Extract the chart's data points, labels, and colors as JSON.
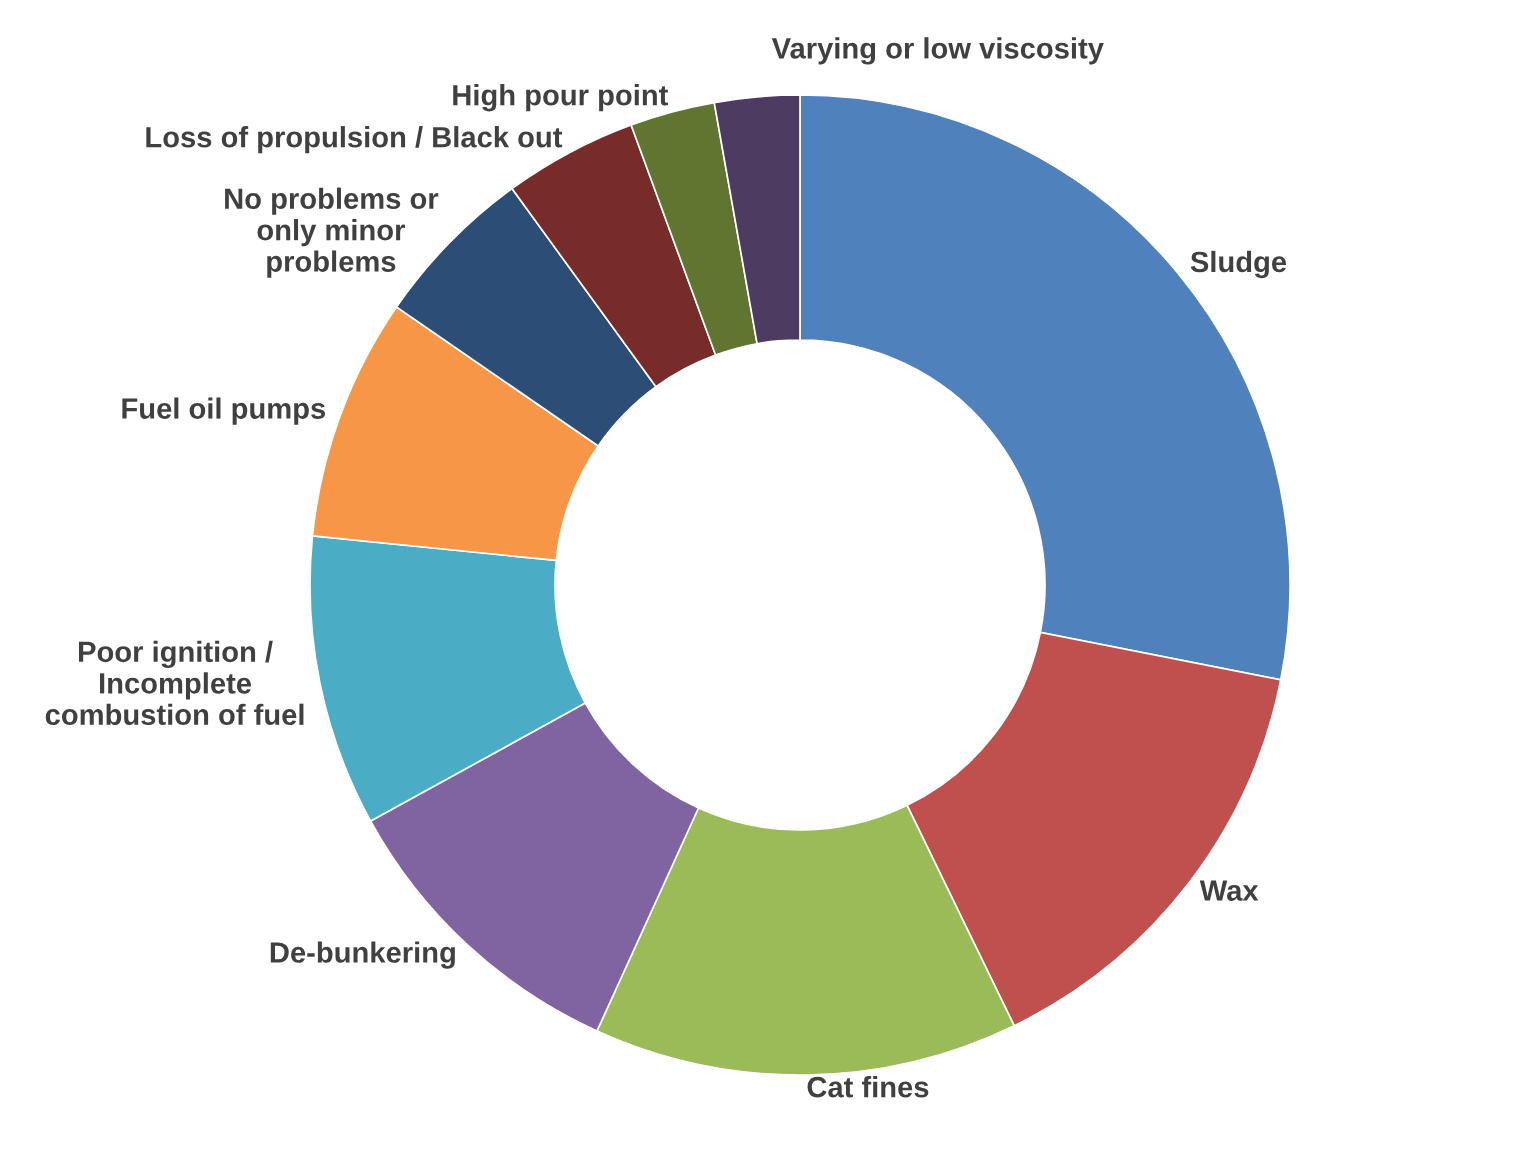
{
  "chart_data": {
    "type": "donut",
    "categories": [
      "Sludge",
      "Wax",
      "Cat fines",
      "De-bunkering",
      "Poor ignition /\nIncomplete\ncombustion of fuel",
      "Fuel oil pumps",
      "No problems or\nonly minor\nproblems",
      "Loss of propulsion / Black out",
      "High pour point",
      "Varying or low viscosity"
    ],
    "values": [
      28.1,
      14.7,
      14.0,
      10.2,
      9.6,
      8.0,
      5.4,
      4.4,
      2.8,
      2.8
    ],
    "colors": [
      "#4f81bd",
      "#c0504d",
      "#9bbb59",
      "#8064a2",
      "#4bacc6",
      "#f79646",
      "#2c4d75",
      "#772c2a",
      "#5f7530",
      "#4d3b62"
    ],
    "legend": false
  }
}
